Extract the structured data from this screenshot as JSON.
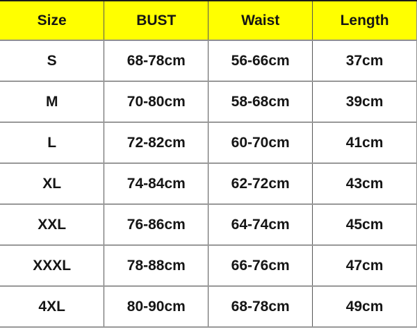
{
  "chart_data": {
    "type": "table",
    "columns": [
      "Size",
      "BUST",
      "Waist",
      "Length"
    ],
    "rows": [
      [
        "S",
        "68-78cm",
        "56-66cm",
        "37cm"
      ],
      [
        "M",
        "70-80cm",
        "58-68cm",
        "39cm"
      ],
      [
        "L",
        "72-82cm",
        "60-70cm",
        "41cm"
      ],
      [
        "XL",
        "74-84cm",
        "62-72cm",
        "43cm"
      ],
      [
        "XXL",
        "76-86cm",
        "64-74cm",
        "45cm"
      ],
      [
        "XXXL",
        "78-88cm",
        "66-76cm",
        "47cm"
      ],
      [
        "4XL",
        "80-90cm",
        "68-78cm",
        "49cm"
      ]
    ],
    "header_background": "#FFFF00",
    "text_color": "#151515",
    "grid": true,
    "layout": "4 equal columns, header row + 7 data rows"
  }
}
